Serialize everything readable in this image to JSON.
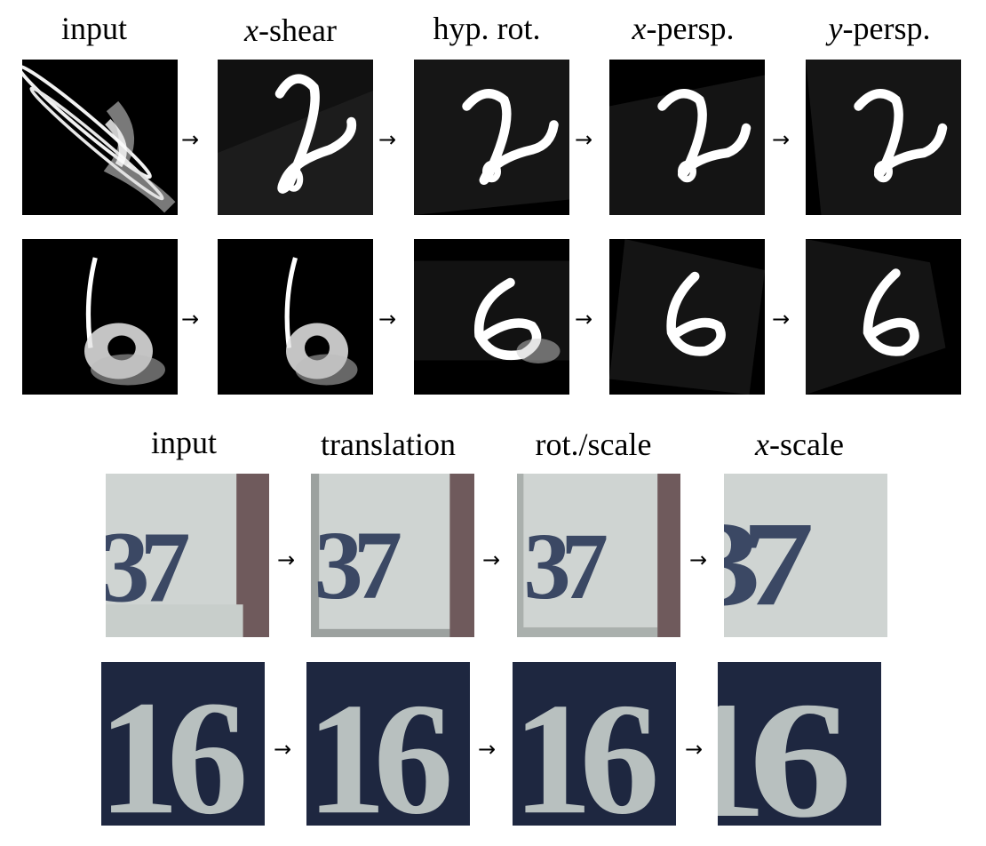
{
  "mnist": {
    "headers": [
      {
        "math": "",
        "text": "input"
      },
      {
        "math": "x",
        "text": "-shear"
      },
      {
        "math": "",
        "text": "hyp. rot."
      },
      {
        "math": "x",
        "text": "-persp."
      },
      {
        "math": "y",
        "text": "-persp."
      }
    ],
    "rows": [
      {
        "digit": "2",
        "cells": [
          "input",
          "x-shear",
          "hyp. rot.",
          "x-persp.",
          "y-persp."
        ]
      },
      {
        "digit": "6",
        "cells": [
          "input",
          "x-shear",
          "hyp. rot.",
          "x-persp.",
          "y-persp."
        ]
      }
    ]
  },
  "svhn": {
    "headers": [
      {
        "math": "",
        "text": "input"
      },
      {
        "math": "",
        "text": "translation"
      },
      {
        "math": "",
        "text": "rot./scale"
      },
      {
        "math": "x",
        "text": "-scale"
      }
    ],
    "rows": [
      {
        "digits": "37",
        "cells": [
          "input",
          "translation",
          "rot./scale",
          "x-scale"
        ]
      },
      {
        "digits": "16",
        "cells": [
          "input",
          "translation",
          "rot./scale",
          "x-scale"
        ]
      }
    ]
  },
  "arrow_glyph": "→",
  "colors": {
    "mnist_background": "#000000",
    "mnist_stroke": "#ffffff",
    "svhn_row1_plate": "#c9cfcf",
    "svhn_row1_digits": "#2d3a55",
    "svhn_row2_background": "#1e2740",
    "svhn_row2_digits": "#b8c0bf"
  }
}
